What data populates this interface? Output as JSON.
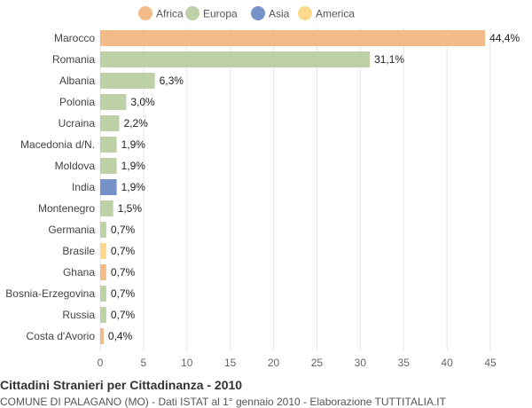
{
  "chart_data": {
    "type": "bar",
    "orientation": "horizontal",
    "title": "Cittadini Stranieri per Cittadinanza - 2010",
    "subtitle": "COMUNE DI PALAGANO (MO) - Dati ISTAT al 1° gennaio 2010 - Elaborazione TUTTITALIA.IT",
    "xlim": [
      0,
      45
    ],
    "xticks": [
      0,
      5,
      10,
      15,
      20,
      25,
      30,
      35,
      40,
      45
    ],
    "grid": true,
    "legend_position": "top",
    "legend": [
      {
        "name": "Africa",
        "color": "#f2bb88"
      },
      {
        "name": "Europa",
        "color": "#bdd0a6"
      },
      {
        "name": "Asia",
        "color": "#7592c9"
      },
      {
        "name": "America",
        "color": "#fdd98c"
      }
    ],
    "bars": [
      {
        "category": "Marocco",
        "value": 44.4,
        "label": "44,4%",
        "group": "Africa"
      },
      {
        "category": "Romania",
        "value": 31.1,
        "label": "31,1%",
        "group": "Europa"
      },
      {
        "category": "Albania",
        "value": 6.3,
        "label": "6,3%",
        "group": "Europa"
      },
      {
        "category": "Polonia",
        "value": 3.0,
        "label": "3,0%",
        "group": "Europa"
      },
      {
        "category": "Ucraina",
        "value": 2.2,
        "label": "2,2%",
        "group": "Europa"
      },
      {
        "category": "Macedonia d/N.",
        "value": 1.9,
        "label": "1,9%",
        "group": "Europa"
      },
      {
        "category": "Moldova",
        "value": 1.9,
        "label": "1,9%",
        "group": "Europa"
      },
      {
        "category": "India",
        "value": 1.9,
        "label": "1,9%",
        "group": "Asia"
      },
      {
        "category": "Montenegro",
        "value": 1.5,
        "label": "1,5%",
        "group": "Europa"
      },
      {
        "category": "Germania",
        "value": 0.7,
        "label": "0,7%",
        "group": "Europa"
      },
      {
        "category": "Brasile",
        "value": 0.7,
        "label": "0,7%",
        "group": "America"
      },
      {
        "category": "Ghana",
        "value": 0.7,
        "label": "0,7%",
        "group": "Africa"
      },
      {
        "category": "Bosnia-Erzegovina",
        "value": 0.7,
        "label": "0,7%",
        "group": "Europa"
      },
      {
        "category": "Russia",
        "value": 0.7,
        "label": "0,7%",
        "group": "Europa"
      },
      {
        "category": "Costa d'Avorio",
        "value": 0.4,
        "label": "0,4%",
        "group": "Africa"
      }
    ]
  }
}
